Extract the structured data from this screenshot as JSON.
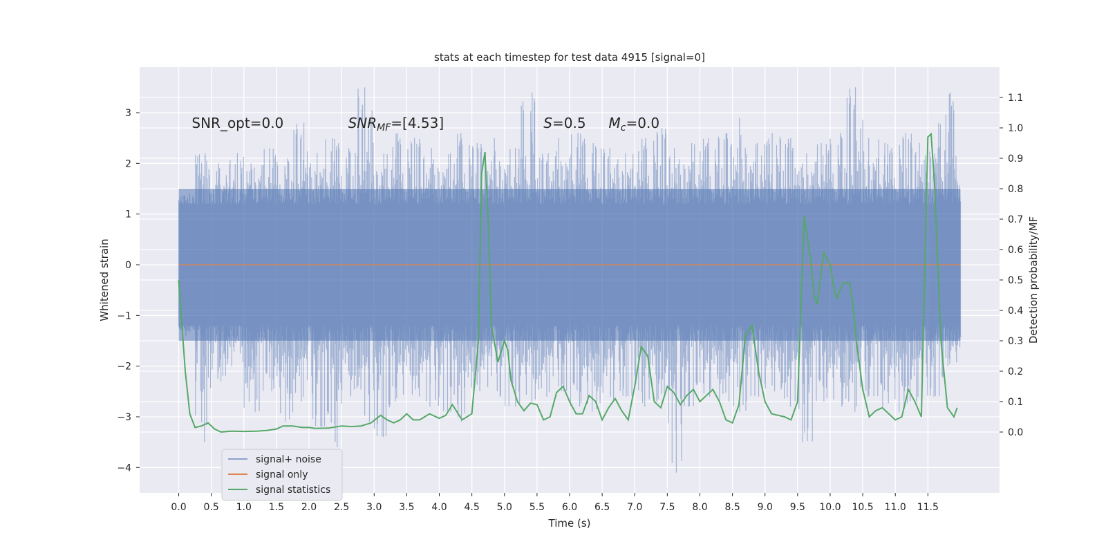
{
  "chart_data": {
    "type": "line",
    "title": "stats at each timestep for test data 4915 [signal=0]",
    "xlabel": "Time (s)",
    "ylabel_left": "Whitened strain",
    "ylabel_right": "Detection probability/MF",
    "xlim": [
      -0.6,
      12.6
    ],
    "ylim_left": [
      -4.5,
      3.9
    ],
    "ylim_right": [
      -0.2,
      1.2
    ],
    "x_ticks": [
      0.0,
      0.5,
      1.0,
      1.5,
      2.0,
      2.5,
      3.0,
      3.5,
      4.0,
      4.5,
      5.0,
      5.5,
      6.0,
      6.5,
      7.0,
      7.5,
      8.0,
      8.5,
      9.0,
      9.5,
      10.0,
      10.5,
      11.0,
      11.5
    ],
    "x_tick_labels": [
      "0.0",
      "0.5",
      "1.0",
      "1.5",
      "2.0",
      "2.5",
      "3.0",
      "3.5",
      "4.0",
      "4.5",
      "5.0",
      "5.5",
      "6.0",
      "6.5",
      "7.0",
      "7.5",
      "8.0",
      "8.5",
      "9.0",
      "9.5",
      "10.0",
      "10.5",
      "11.0",
      "11.5"
    ],
    "y_left_ticks": [
      -4,
      -3,
      -2,
      -1,
      0,
      1,
      2,
      3
    ],
    "y_left_tick_labels": [
      "−4",
      "−3",
      "−2",
      "−1",
      "0",
      "1",
      "2",
      "3"
    ],
    "y_right_ticks": [
      0.0,
      0.1,
      0.2,
      0.3,
      0.4,
      0.5,
      0.6,
      0.7,
      0.8,
      0.9,
      1.0,
      1.1
    ],
    "y_right_tick_labels": [
      "0.0",
      "0.1",
      "0.2",
      "0.3",
      "0.4",
      "0.5",
      "0.6",
      "0.7",
      "0.8",
      "0.9",
      "1.0",
      "1.1"
    ],
    "grid": true,
    "legend_position": "lower-left",
    "series": [
      {
        "name": "signal+ noise",
        "axis": "left",
        "color": "#4c72b0",
        "description_free": true,
        "x_range": [
          0.0,
          12.0
        ],
        "envelope_upper": [
          1.4,
          2.2,
          2.0,
          2.2,
          2.0,
          2.3,
          2.1,
          2.8,
          2.2,
          2.5,
          2.3,
          3.5,
          2.2,
          2.6,
          2.5,
          2.3,
          2.2,
          2.6,
          2.4,
          2.5,
          2.3,
          3.4,
          2.2,
          2.5,
          2.6,
          2.4,
          2.3,
          2.2,
          2.5,
          2.7,
          2.3,
          2.4,
          2.5,
          2.6,
          2.9,
          2.4,
          2.6,
          2.5,
          2.2,
          2.4,
          2.6,
          3.5,
          2.5,
          2.4,
          2.6,
          2.4,
          2.8,
          3.4
        ],
        "envelope_lower": [
          -1.4,
          -3.5,
          -2.3,
          -2.0,
          -2.9,
          -2.5,
          -3.1,
          -2.7,
          -3.2,
          -3.6,
          -2.6,
          -3.1,
          -3.4,
          -2.7,
          -2.6,
          -2.8,
          -2.9,
          -3.1,
          -2.5,
          -2.6,
          -2.8,
          -2.7,
          -2.6,
          -2.5,
          -2.8,
          -2.9,
          -2.7,
          -2.6,
          -2.8,
          -2.7,
          -4.1,
          -2.8,
          -2.6,
          -2.7,
          -2.9,
          -2.6,
          -2.5,
          -2.8,
          -3.5,
          -2.7,
          -2.8,
          -2.9,
          -2.6,
          -2.8,
          -2.9,
          -2.7,
          -2.6,
          -2.0
        ],
        "core_band": [
          -1.5,
          1.5
        ]
      },
      {
        "name": "signal only",
        "axis": "left",
        "color": "#dd8452",
        "x": [
          0.0,
          12.0
        ],
        "y": [
          0.0,
          0.0
        ]
      },
      {
        "name": "signal statistics",
        "axis": "right",
        "color": "#55a868",
        "x": [
          0.0,
          0.1,
          0.17,
          0.25,
          0.35,
          0.45,
          0.55,
          0.65,
          0.8,
          1.0,
          1.2,
          1.35,
          1.5,
          1.6,
          1.75,
          1.9,
          2.0,
          2.1,
          2.3,
          2.5,
          2.65,
          2.8,
          2.95,
          3.1,
          3.2,
          3.3,
          3.4,
          3.5,
          3.6,
          3.7,
          3.85,
          4.0,
          4.1,
          4.2,
          4.35,
          4.5,
          4.6,
          4.65,
          4.7,
          4.75,
          4.8,
          4.9,
          5.0,
          5.05,
          5.1,
          5.2,
          5.3,
          5.4,
          5.5,
          5.6,
          5.7,
          5.8,
          5.9,
          6.0,
          6.1,
          6.2,
          6.3,
          6.4,
          6.5,
          6.6,
          6.7,
          6.8,
          6.9,
          7.0,
          7.1,
          7.2,
          7.3,
          7.4,
          7.5,
          7.6,
          7.7,
          7.8,
          7.9,
          8.0,
          8.1,
          8.2,
          8.3,
          8.4,
          8.5,
          8.6,
          8.7,
          8.8,
          8.9,
          9.0,
          9.1,
          9.2,
          9.3,
          9.4,
          9.5,
          9.6,
          9.7,
          9.75,
          9.8,
          9.9,
          10.0,
          10.05,
          10.1,
          10.2,
          10.3,
          10.35,
          10.4,
          10.5,
          10.6,
          10.7,
          10.8,
          10.9,
          11.0,
          11.1,
          11.2,
          11.3,
          11.4,
          11.5,
          11.55,
          11.6,
          11.7,
          11.8,
          11.9,
          11.95
        ],
        "y": [
          0.5,
          0.2,
          0.06,
          0.015,
          0.02,
          0.03,
          0.01,
          0.0,
          0.003,
          0.002,
          0.003,
          0.005,
          0.01,
          0.02,
          0.02,
          0.015,
          0.015,
          0.012,
          0.013,
          0.02,
          0.018,
          0.02,
          0.03,
          0.055,
          0.04,
          0.03,
          0.04,
          0.06,
          0.04,
          0.04,
          0.06,
          0.045,
          0.055,
          0.09,
          0.04,
          0.06,
          0.3,
          0.85,
          0.92,
          0.7,
          0.35,
          0.23,
          0.3,
          0.27,
          0.17,
          0.1,
          0.07,
          0.095,
          0.09,
          0.04,
          0.05,
          0.13,
          0.15,
          0.1,
          0.06,
          0.06,
          0.12,
          0.1,
          0.04,
          0.08,
          0.11,
          0.07,
          0.04,
          0.15,
          0.28,
          0.25,
          0.1,
          0.08,
          0.15,
          0.13,
          0.09,
          0.12,
          0.14,
          0.1,
          0.12,
          0.14,
          0.1,
          0.04,
          0.03,
          0.09,
          0.32,
          0.35,
          0.2,
          0.1,
          0.06,
          0.055,
          0.05,
          0.04,
          0.1,
          0.71,
          0.57,
          0.45,
          0.42,
          0.59,
          0.55,
          0.48,
          0.44,
          0.49,
          0.49,
          0.42,
          0.3,
          0.14,
          0.05,
          0.07,
          0.08,
          0.06,
          0.04,
          0.05,
          0.14,
          0.1,
          0.05,
          0.97,
          0.98,
          0.82,
          0.3,
          0.08,
          0.05,
          0.08
        ]
      }
    ],
    "annotations": [
      {
        "text": "SNR_opt=0.0",
        "x": 0.2,
        "y_axis": "left",
        "y": 2.7
      },
      {
        "text_main": "SNR",
        "text_sub": "MF",
        "text_tail": "=[4.53]",
        "x": 2.6,
        "y_axis": "left",
        "y": 2.7
      },
      {
        "text_main": "S",
        "text_tail": "=0.5",
        "x": 5.6,
        "y_axis": "left",
        "y": 2.7
      },
      {
        "text_main": "M",
        "text_sub": "c",
        "text_tail": "=0.0",
        "x": 6.6,
        "y_axis": "left",
        "y": 2.7
      }
    ],
    "legend": [
      {
        "label": "signal+ noise",
        "color": "#4c72b0"
      },
      {
        "label": "signal only",
        "color": "#dd8452"
      },
      {
        "label": "signal statistics",
        "color": "#55a868"
      }
    ]
  },
  "colors": {
    "plot_bg": "#eaeaf2",
    "grid": "#ffffff",
    "text": "#262626"
  }
}
